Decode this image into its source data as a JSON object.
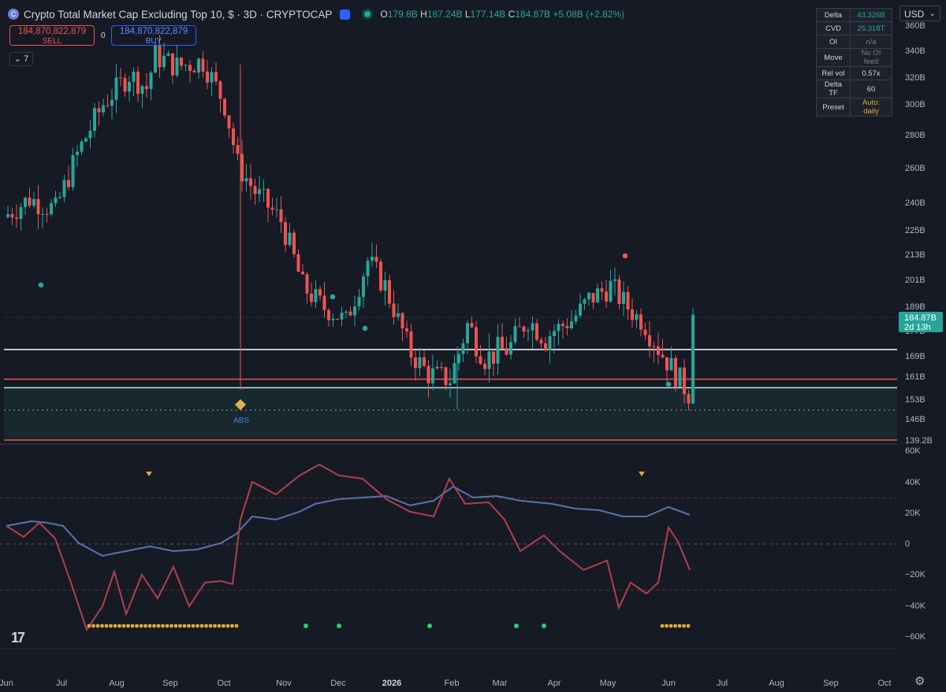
{
  "header": {
    "title": "Crypto Total Market Cap Excluding Top 10, $ · 3D · CRYPTOCAP",
    "ohlc": [
      {
        "k": "O",
        "v": "179.8B"
      },
      {
        "k": "H",
        "v": "187.24B"
      },
      {
        "k": "L",
        "v": "177.14B"
      },
      {
        "k": "C",
        "v": "184.87B"
      }
    ],
    "change": "+5.08B (+2.82%)"
  },
  "trade": {
    "sell_price": "184,870,822,879",
    "sell_label": "SELL",
    "spread": "0",
    "buy_price": "184,870,822,879",
    "buy_label": "BUY"
  },
  "indicators_collapsed": "7",
  "currency": "USD",
  "stats_table": [
    {
      "key": "Delta",
      "value": "43.326B",
      "color": "#26a69a"
    },
    {
      "key": "CVD",
      "value": "25.318T",
      "color": "#26a69a"
    },
    {
      "key": "OI",
      "value": "n/a",
      "color": "#787b86"
    },
    {
      "key": "Move",
      "value": "No OI feed",
      "color": "#787b86"
    },
    {
      "key": "Rel vol",
      "value": "0.57x",
      "color": "#d1d4dc"
    },
    {
      "key": "Delta TF",
      "value": "60",
      "color": "#d1d4dc"
    },
    {
      "key": "Preset",
      "value": "Auto: daily",
      "color": "#e0a93a"
    }
  ],
  "colors": {
    "up": "#26a69a",
    "down": "#ef5350",
    "accent": "#2962ff",
    "cvd_line": "#5a72b0",
    "delta_line": "#b0404a"
  },
  "icons": [
    "tradingview-logo-icon",
    "settings-gear-icon",
    "chevron-down-icon",
    "eye-icon"
  ],
  "chart_data": {
    "type": "candlestick",
    "title": "Crypto Total Market Cap Excluding Top 10, $ · 3D · CRYPTOCAP",
    "current_price": "184.87B",
    "countdown": "2d 13h",
    "price_axis_labels": [
      "360B",
      "340B",
      "320B",
      "300B",
      "280B",
      "260B",
      "240B",
      "225B",
      "213B",
      "201B",
      "189B",
      "177B",
      "169B",
      "161B",
      "153B",
      "146B",
      "139.2B"
    ],
    "time_axis_labels": [
      "Jun",
      "Jul",
      "Aug",
      "Sep",
      "Oct",
      "Nov",
      "Dec",
      "2026",
      "Feb",
      "Mar",
      "Apr",
      "May",
      "Jun",
      "Jul",
      "Aug",
      "Sep",
      "Oct"
    ],
    "horizontal_levels": [
      {
        "value": 171,
        "color": "#ffffff"
      },
      {
        "value": 160,
        "color": "#ef5350"
      },
      {
        "value": 157,
        "color": "#b2ebf2"
      },
      {
        "value": 139.2,
        "color": "#ef5350"
      }
    ],
    "zone": {
      "from": 139.2,
      "to": 157
    },
    "annotations": [
      {
        "label": "ABS",
        "at": "Oct"
      }
    ],
    "oscillator_axis_labels": [
      "60K",
      "40K",
      "20K",
      "0",
      "−20K",
      "−40K",
      "−60K"
    ],
    "oscillator_range": [
      -60000,
      60000
    ],
    "oscillator_series": [
      "CVD",
      "Delta"
    ]
  }
}
